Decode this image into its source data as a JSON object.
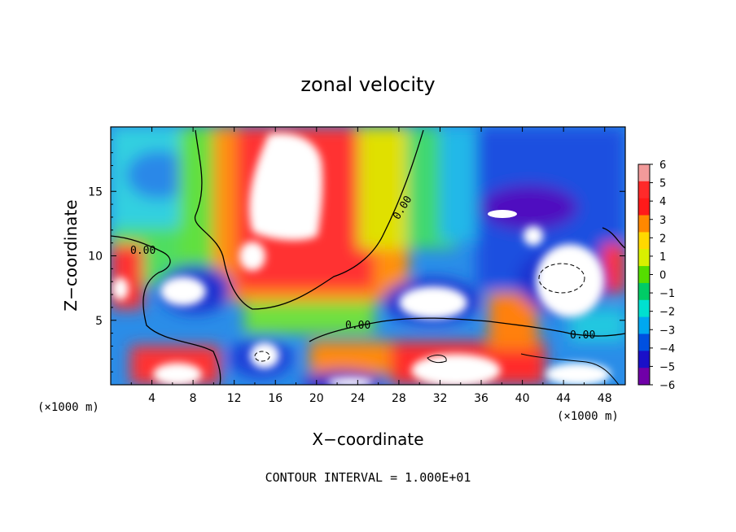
{
  "chart_data": {
    "type": "heatmap",
    "title": "zonal velocity",
    "xlabel": "X−coordinate",
    "ylabel": "Z−coordinate",
    "x_unit_left": "(×1000 m)",
    "x_unit_right": "(×1000 m)",
    "x_ticks": [
      4,
      8,
      12,
      16,
      20,
      24,
      28,
      32,
      36,
      40,
      44,
      48
    ],
    "y_ticks": [
      5,
      10,
      15
    ],
    "xlim": [
      0,
      50
    ],
    "ylim": [
      0,
      20
    ],
    "colorbar": {
      "ticks": [
        "6",
        "5",
        "4",
        "3",
        "2",
        "1",
        "0",
        "−1",
        "−2",
        "−3",
        "−4",
        "−5",
        "−6"
      ],
      "range": [
        -6,
        6
      ],
      "colors": [
        "#f29a9a",
        "#ff2a2a",
        "#ff1a1a",
        "#ff8800",
        "#ffd800",
        "#d8f000",
        "#55dd00",
        "#00cc66",
        "#00e0d0",
        "#00a8f0",
        "#0050e0",
        "#1a10c8",
        "#7000a8"
      ]
    },
    "contour_labels": [
      "0.00",
      "0.00",
      "0.00",
      "0.00"
    ],
    "footer": "CONTOUR INTERVAL = 1.000E+01"
  }
}
